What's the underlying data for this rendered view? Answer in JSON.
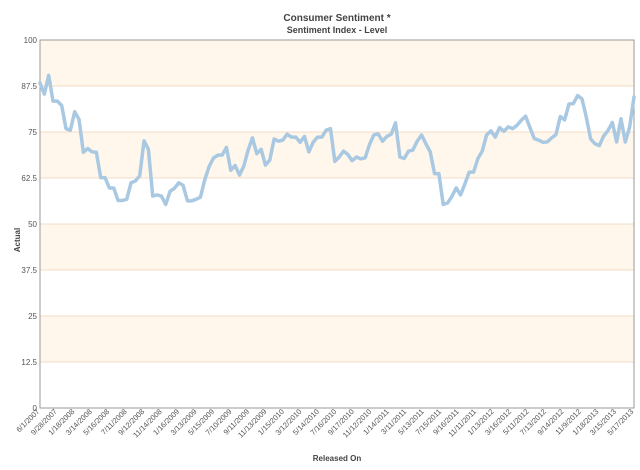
{
  "chart_data": {
    "type": "line",
    "title": "Consumer Sentiment *",
    "subtitle": "Sentiment Index - Level",
    "xlabel": "Released On",
    "ylabel": "Actual",
    "ylim": [
      0,
      100
    ],
    "yticks": [
      "0",
      "12.5",
      "25",
      "37.5",
      "50",
      "62.5",
      "75",
      "87.5",
      "100"
    ],
    "grid": true,
    "legend": "none",
    "colors": {
      "line": "#a9c8e2",
      "band_shade": "#fff6ec",
      "band_plain": "#ffffff",
      "gridline": "#f0dcc4",
      "frame": "#9a9a9a"
    },
    "xtick_labels": [
      "6/1/2007",
      "9/28/2007",
      "1/18/2008",
      "3/14/2008",
      "5/16/2008",
      "7/11/2008",
      "9/12/2008",
      "11/14/2008",
      "1/16/2009",
      "3/13/2009",
      "5/15/2009",
      "7/10/2009",
      "9/11/2009",
      "11/13/2009",
      "1/15/2010",
      "3/12/2010",
      "5/14/2010",
      "7/16/2010",
      "9/17/2010",
      "11/12/2010",
      "1/14/2011",
      "3/11/2011",
      "5/13/2011",
      "7/15/2011",
      "9/16/2011",
      "11/11/2011",
      "1/13/2012",
      "3/16/2012",
      "5/11/2012",
      "7/13/2012",
      "9/14/2012",
      "11/9/2012",
      "1/18/2013",
      "3/15/2013",
      "5/17/2013"
    ],
    "series": [
      {
        "values": [
          88.3,
          85.3,
          90.4,
          83.4,
          83.4,
          82.2,
          75.9,
          75.5,
          80.5,
          78.4,
          69.5,
          70.5,
          69.6,
          69.5,
          62.6,
          62.6,
          59.8,
          59.8,
          56.4,
          56.4,
          56.7,
          61.2,
          61.7,
          63.1,
          72.6,
          70.3,
          57.6,
          57.9,
          57.6,
          55.3,
          58.9,
          59.7,
          61.2,
          60.5,
          56.3,
          56.3,
          56.7,
          57.3,
          62.0,
          65.6,
          67.9,
          68.7,
          68.7,
          70.8,
          64.6,
          65.9,
          63.3,
          65.7,
          70.1,
          73.4,
          69.1,
          70.3,
          66.0,
          67.4,
          73.1,
          72.5,
          72.8,
          74.4,
          73.6,
          73.6,
          72.2,
          73.8,
          69.6,
          72.2,
          73.6,
          73.6,
          75.5,
          75.9,
          67.0,
          68.2,
          69.8,
          68.9,
          67.2,
          68.2,
          67.7,
          68.0,
          71.6,
          74.2,
          74.5,
          72.5,
          73.8,
          74.4,
          77.5,
          68.2,
          67.8,
          69.8,
          70.1,
          72.5,
          74.2,
          71.8,
          69.6,
          63.7,
          63.7,
          55.3,
          55.7,
          57.5,
          59.8,
          57.9,
          60.9,
          64.1,
          64.1,
          67.8,
          69.8,
          74.2,
          75.3,
          73.6,
          76.2,
          75.2,
          76.4,
          75.9,
          76.8,
          78.2,
          79.3,
          76.2,
          73.2,
          72.8,
          72.2,
          72.3,
          73.4,
          74.3,
          79.2,
          78.3,
          82.6,
          82.7,
          84.9,
          84.0,
          79.0,
          73.1,
          71.8,
          71.3,
          73.9,
          75.4,
          77.6,
          72.3,
          78.6,
          72.3,
          76.4,
          84.5
        ]
      }
    ]
  }
}
